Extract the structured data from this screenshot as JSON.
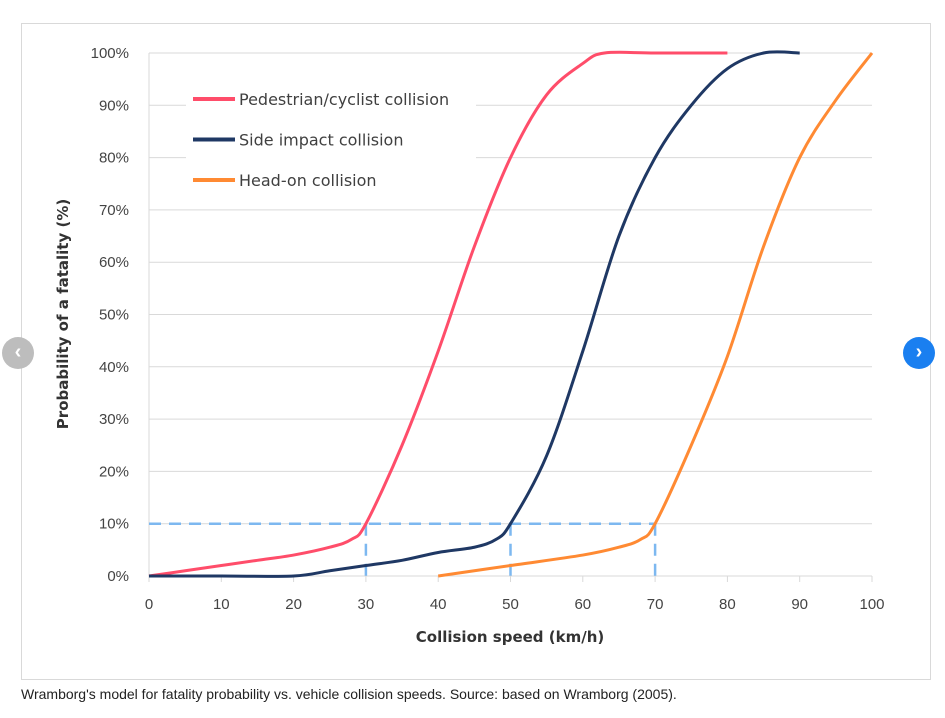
{
  "chart_data": {
    "type": "line",
    "xlabel": "Collision speed (km/h)",
    "ylabel": "Probability of a fatality (%)",
    "xlim": [
      0,
      100
    ],
    "ylim": [
      0,
      100
    ],
    "x_ticks": [
      "0",
      "10",
      "20",
      "30",
      "40",
      "50",
      "60",
      "70",
      "80",
      "90",
      "100"
    ],
    "y_ticks": [
      "0%",
      "10%",
      "20%",
      "30%",
      "40%",
      "50%",
      "60%",
      "70%",
      "80%",
      "90%",
      "100%"
    ],
    "grid": "horizontal",
    "legend_position": "top-left",
    "series": [
      {
        "name": "Pedestrian/cyclist collision",
        "color": "#ff4d6a",
        "points": [
          [
            0,
            0
          ],
          [
            5,
            1
          ],
          [
            10,
            2
          ],
          [
            15,
            3
          ],
          [
            20,
            4
          ],
          [
            25,
            5.5
          ],
          [
            28,
            7
          ],
          [
            30,
            10
          ],
          [
            35,
            25
          ],
          [
            40,
            43
          ],
          [
            45,
            63
          ],
          [
            50,
            80
          ],
          [
            55,
            92
          ],
          [
            60,
            98
          ],
          [
            63,
            100
          ],
          [
            70,
            100
          ],
          [
            80,
            100
          ]
        ]
      },
      {
        "name": "Side impact collision",
        "color": "#1f3864",
        "points": [
          [
            0,
            0
          ],
          [
            10,
            0
          ],
          [
            20,
            0
          ],
          [
            25,
            1
          ],
          [
            30,
            2
          ],
          [
            35,
            3
          ],
          [
            40,
            4.5
          ],
          [
            45,
            5.5
          ],
          [
            48,
            7
          ],
          [
            50,
            10
          ],
          [
            55,
            23
          ],
          [
            60,
            43
          ],
          [
            65,
            65
          ],
          [
            70,
            80
          ],
          [
            75,
            90
          ],
          [
            80,
            97
          ],
          [
            85,
            100
          ],
          [
            90,
            100
          ]
        ]
      },
      {
        "name": "Head-on collision",
        "color": "#ff8a33",
        "points": [
          [
            40,
            0
          ],
          [
            50,
            2
          ],
          [
            60,
            4
          ],
          [
            65,
            5.5
          ],
          [
            68,
            7
          ],
          [
            70,
            10
          ],
          [
            75,
            25
          ],
          [
            80,
            42
          ],
          [
            85,
            63
          ],
          [
            90,
            80
          ],
          [
            95,
            91
          ],
          [
            100,
            100
          ]
        ]
      }
    ],
    "reference_lines": {
      "y": 10,
      "x": [
        30,
        50,
        70
      ],
      "color": "#7db8f0",
      "style": "dashed"
    }
  },
  "caption": "Wramborg's model for fatality probability vs. vehicle collision speeds. Source: based on Wramborg (2005).",
  "carousel": {
    "prev_icon": "chevron-left-icon",
    "next_icon": "chevron-right-icon",
    "prev_label": "‹",
    "next_label": "›"
  }
}
